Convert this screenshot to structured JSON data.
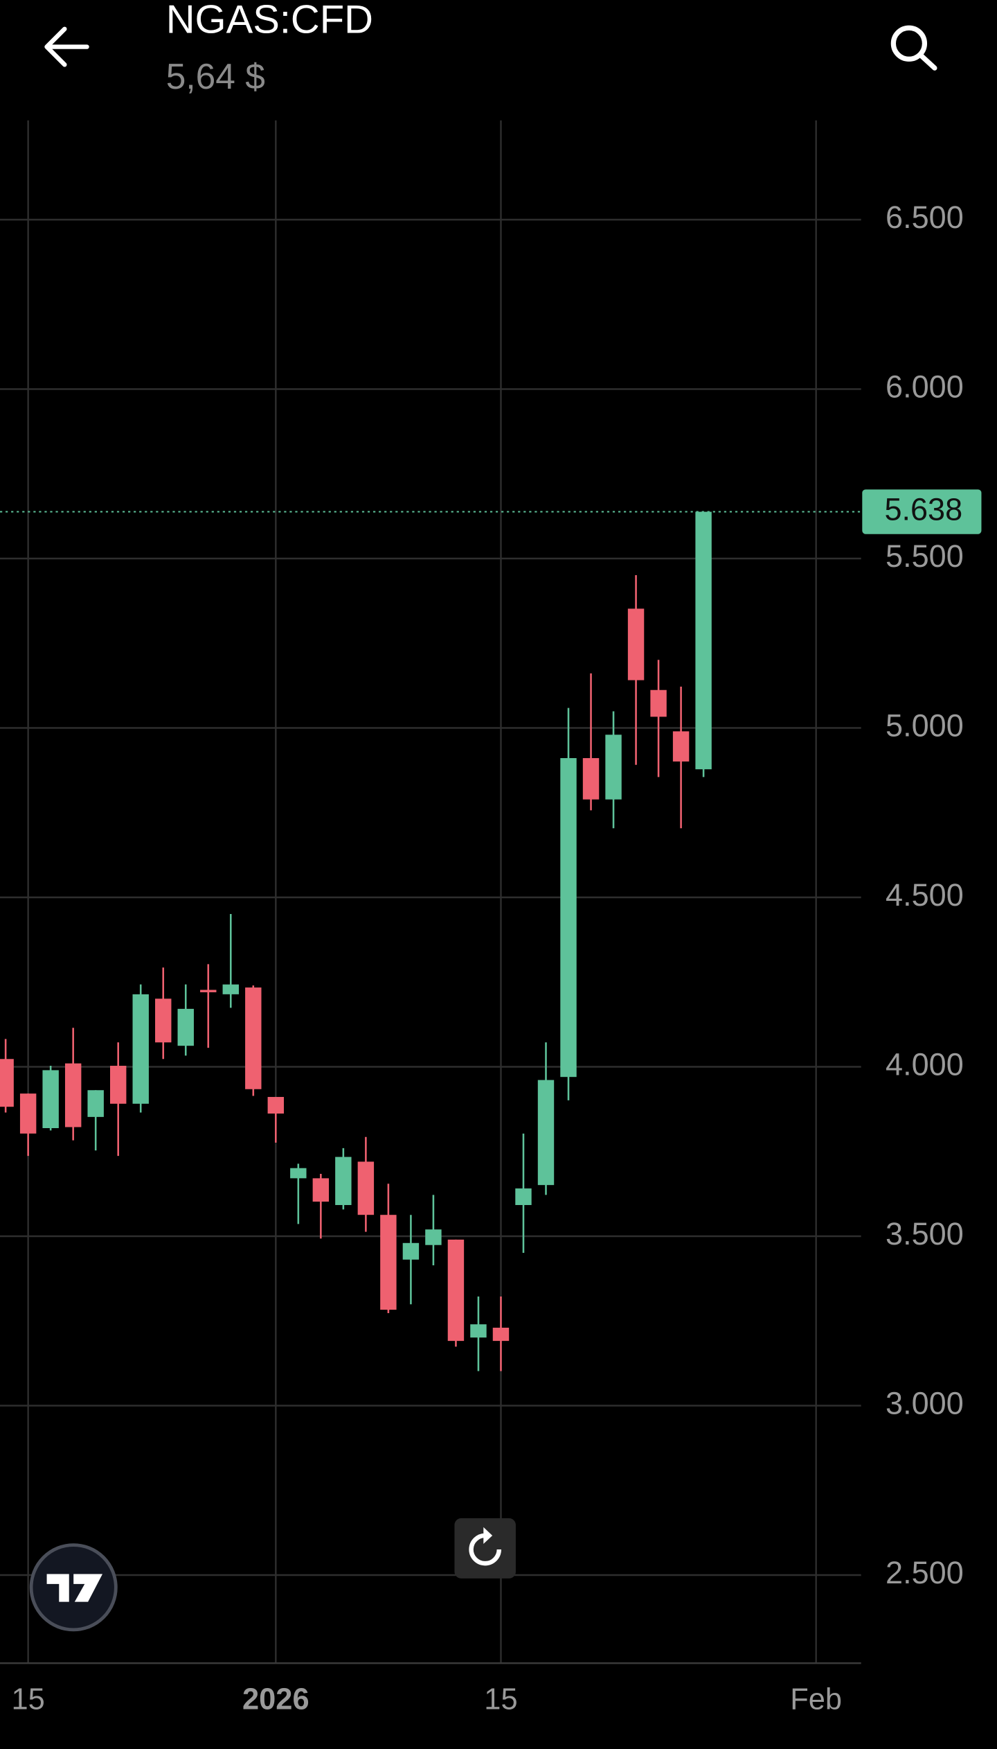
{
  "chart_data": {
    "type": "candlestick",
    "title": "NGAS:CFD",
    "subtitle": "5,64 $",
    "x": [
      0,
      1,
      2,
      3,
      4,
      5,
      6,
      7,
      8,
      9,
      10,
      11,
      12,
      13,
      14,
      15,
      16,
      17,
      18,
      19,
      20,
      21,
      22,
      23,
      24,
      25,
      26,
      27,
      28,
      29,
      30,
      31
    ],
    "open": [
      4.023,
      3.921,
      3.819,
      4.01,
      3.852,
      4.003,
      3.891,
      4.201,
      4.062,
      4.227,
      4.214,
      4.234,
      3.911,
      3.671,
      3.671,
      3.592,
      3.72,
      3.563,
      3.431,
      3.474,
      3.49,
      3.201,
      3.23,
      3.592,
      3.651,
      3.97,
      4.911,
      4.789,
      5.352,
      5.112,
      4.99,
      4.878
    ],
    "high": [
      4.082,
      3.921,
      4.003,
      4.115,
      3.931,
      4.072,
      4.243,
      4.293,
      4.243,
      4.303,
      4.451,
      4.24,
      3.911,
      3.714,
      3.684,
      3.76,
      3.793,
      3.655,
      3.563,
      3.622,
      3.49,
      3.322,
      3.322,
      3.803,
      4.072,
      5.059,
      5.161,
      5.049,
      5.451,
      5.201,
      5.122,
      5.638
    ],
    "low": [
      3.865,
      3.737,
      3.812,
      3.783,
      3.753,
      3.737,
      3.865,
      4.023,
      4.033,
      4.056,
      4.174,
      3.914,
      3.776,
      3.536,
      3.493,
      3.579,
      3.513,
      3.273,
      3.299,
      3.414,
      3.174,
      3.102,
      3.102,
      3.451,
      3.622,
      3.901,
      4.757,
      4.704,
      4.891,
      4.855,
      4.704,
      4.855
    ],
    "close": [
      3.882,
      3.803,
      3.99,
      3.822,
      3.931,
      3.891,
      4.214,
      4.072,
      4.171,
      4.22,
      4.243,
      3.934,
      3.862,
      3.701,
      3.602,
      3.734,
      3.563,
      3.283,
      3.48,
      3.52,
      3.191,
      3.24,
      3.191,
      3.641,
      3.961,
      4.911,
      4.789,
      4.98,
      5.141,
      5.033,
      4.901,
      5.638
    ],
    "up_color": "#5ec29a",
    "down_color": "#ef6170",
    "last_price": 5.638,
    "xlim": [
      -0.25,
      38.0
    ],
    "xticks": [
      {
        "value": 1,
        "label": "15"
      },
      {
        "value": 12,
        "label": "2026"
      },
      {
        "value": 22,
        "label": "15"
      },
      {
        "value": 36,
        "label": "Feb"
      }
    ],
    "ylim": [
      2.24,
      6.793
    ],
    "yticks": [
      {
        "value": 2.5,
        "label": "2.500"
      },
      {
        "value": 3.0,
        "label": "3.000"
      },
      {
        "value": 3.5,
        "label": "3.500"
      },
      {
        "value": 4.0,
        "label": "4.000"
      },
      {
        "value": 4.5,
        "label": "4.500"
      },
      {
        "value": 5.0,
        "label": "5.000"
      },
      {
        "value": 5.5,
        "label": "5.500"
      },
      {
        "value": 6.0,
        "label": "6.000"
      },
      {
        "value": 6.5,
        "label": "6.500"
      }
    ],
    "grid": true
  }
}
